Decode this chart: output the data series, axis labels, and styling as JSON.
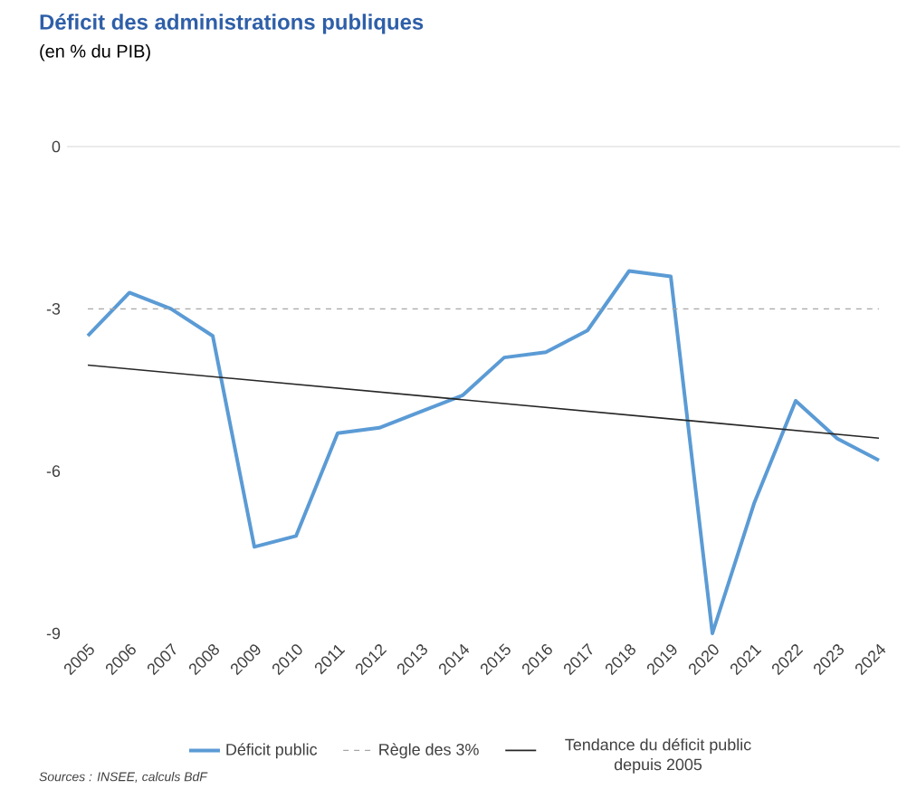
{
  "chart_data": {
    "type": "line",
    "title": "Déficit des administrations publiques",
    "subtitle": "(en % du PIB)",
    "x": [
      2005,
      2006,
      2007,
      2008,
      2009,
      2010,
      2011,
      2012,
      2013,
      2014,
      2015,
      2016,
      2017,
      2018,
      2019,
      2020,
      2021,
      2022,
      2023,
      2024
    ],
    "series": [
      {
        "name": "Déficit  public",
        "color": "#5b9bd5",
        "values": [
          -3.5,
          -2.7,
          -3.0,
          -3.5,
          -7.4,
          -7.2,
          -5.3,
          -5.2,
          -4.9,
          -4.6,
          -3.9,
          -3.8,
          -3.4,
          -2.3,
          -2.4,
          -9.0,
          -6.6,
          -4.7,
          -5.4,
          -5.8
        ]
      },
      {
        "name": "Tendance du déficit public depuis 2005",
        "color": "#262626",
        "type": "line",
        "x": [
          2005,
          2024
        ],
        "values": [
          -4.04,
          -5.39
        ]
      }
    ],
    "ref_lines": [
      {
        "axis": "y",
        "value": -3,
        "label": "Règle des 3%",
        "color": "#a6a6a6",
        "line_style": "dashed"
      }
    ],
    "xlim": [
      2004.5,
      2024.5
    ],
    "ylim": [
      -9,
      0
    ],
    "xticks": [
      2005,
      2006,
      2007,
      2008,
      2009,
      2010,
      2011,
      2012,
      2013,
      2014,
      2015,
      2016,
      2017,
      2018,
      2019,
      2020,
      2021,
      2022,
      2023,
      2024
    ],
    "yticks": [
      -9,
      -6,
      -3,
      0
    ],
    "legend": "bottom",
    "annotations": [
      "Sources : INSEE, calculs BdF"
    ]
  }
}
